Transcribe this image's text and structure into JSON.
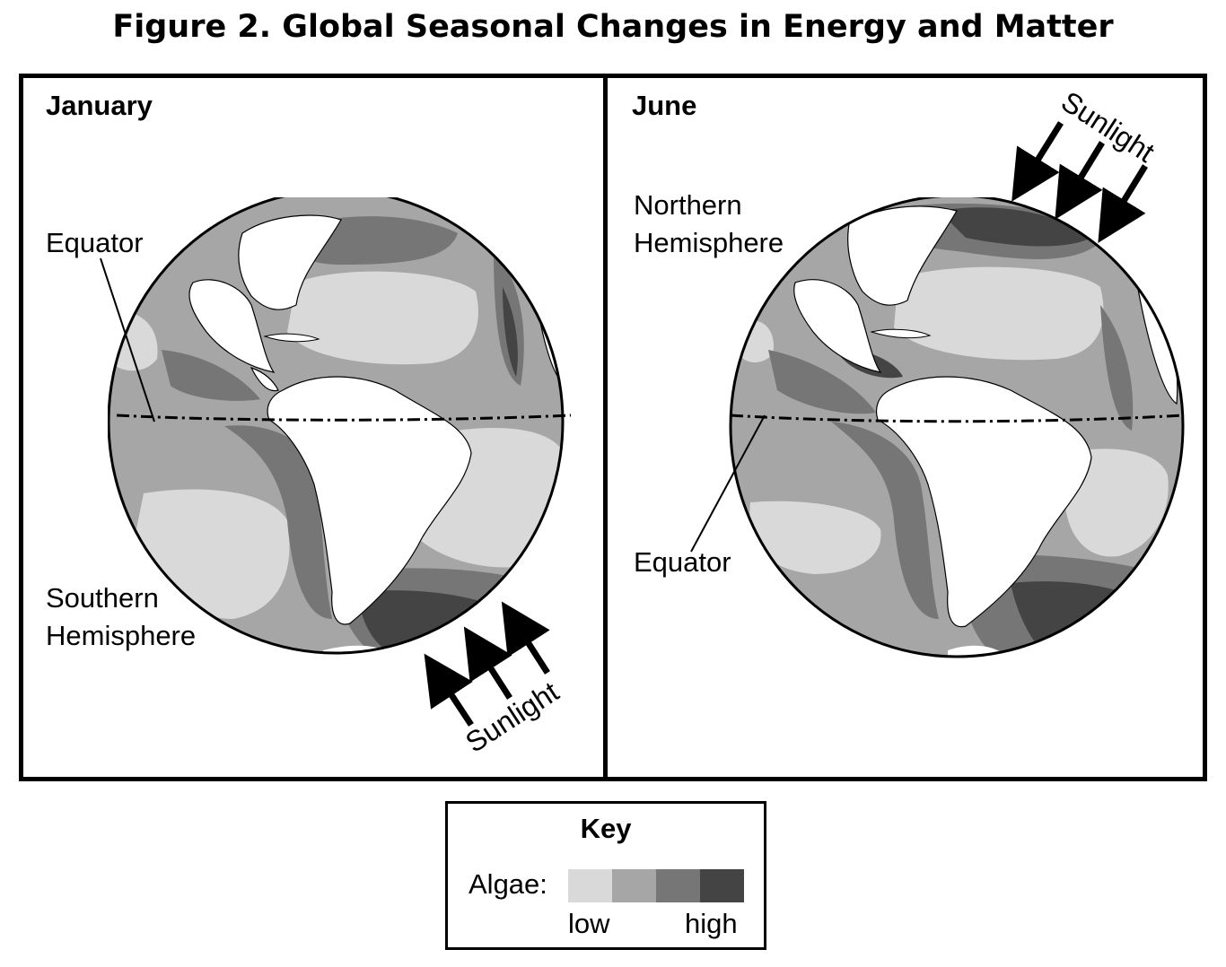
{
  "title": "Figure 2. Global Seasonal Changes in Energy and Matter",
  "panels": {
    "january": {
      "month": "January",
      "equator_label": "Equator",
      "hemisphere_line1": "Southern",
      "hemisphere_line2": "Hemisphere",
      "sunlight_label": "Sunlight"
    },
    "june": {
      "month": "June",
      "equator_label": "Equator",
      "hemisphere_line1": "Northern",
      "hemisphere_line2": "Hemisphere",
      "sunlight_label": "Sunlight"
    }
  },
  "key": {
    "title": "Key",
    "algae_label": "Algae:",
    "low_label": "low",
    "high_label": "high",
    "colors": [
      "#d9d9d9",
      "#a6a6a6",
      "#767676",
      "#444444"
    ]
  }
}
